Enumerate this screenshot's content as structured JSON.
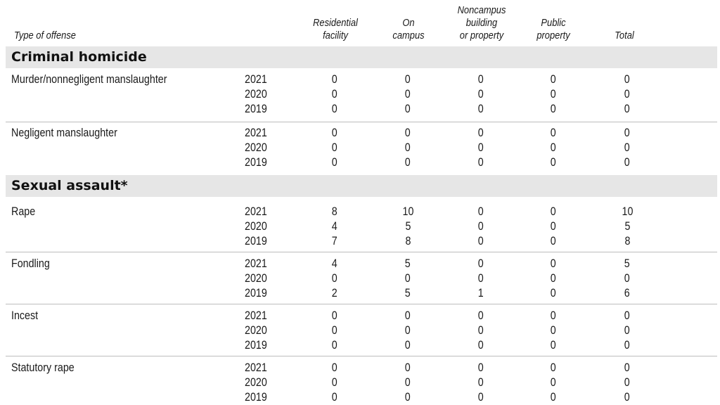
{
  "header": {
    "type_label": "Type of offense",
    "columns": [
      {
        "lines": [
          "Residential",
          "facility"
        ]
      },
      {
        "lines": [
          "On",
          "campus"
        ]
      },
      {
        "lines": [
          "Noncampus",
          "building",
          "or property"
        ]
      },
      {
        "lines": [
          "Public",
          "property"
        ]
      },
      {
        "lines": [
          "Total"
        ]
      }
    ]
  },
  "sections": [
    {
      "title": "Criminal homicide",
      "rows": [
        {
          "offense": "Murder/nonnegligent manslaughter",
          "years": [
            "2021",
            "2020",
            "2019"
          ],
          "residential": [
            "0",
            "0",
            "0"
          ],
          "on_campus": [
            "0",
            "0",
            "0"
          ],
          "noncampus": [
            "0",
            "0",
            "0"
          ],
          "public": [
            "0",
            "0",
            "0"
          ],
          "total": [
            "0",
            "0",
            "0"
          ]
        },
        {
          "offense": "Negligent manslaughter",
          "years": [
            "2021",
            "2020",
            "2019"
          ],
          "residential": [
            "0",
            "0",
            "0"
          ],
          "on_campus": [
            "0",
            "0",
            "0"
          ],
          "noncampus": [
            "0",
            "0",
            "0"
          ],
          "public": [
            "0",
            "0",
            "0"
          ],
          "total": [
            "0",
            "0",
            "0"
          ]
        }
      ]
    },
    {
      "title": "Sexual assault*",
      "rows": [
        {
          "offense": "Rape",
          "years": [
            "2021",
            "2020",
            "2019"
          ],
          "residential": [
            "8",
            "4",
            "7"
          ],
          "on_campus": [
            "10",
            "5",
            "8"
          ],
          "noncampus": [
            "0",
            "0",
            "0"
          ],
          "public": [
            "0",
            "0",
            "0"
          ],
          "total": [
            "10",
            "5",
            "8"
          ]
        },
        {
          "offense": "Fondling",
          "years": [
            "2021",
            "2020",
            "2019"
          ],
          "residential": [
            "4",
            "0",
            "2"
          ],
          "on_campus": [
            "5",
            "0",
            "5"
          ],
          "noncampus": [
            "0",
            "0",
            "1"
          ],
          "public": [
            "0",
            "0",
            "0"
          ],
          "total": [
            "5",
            "0",
            "6"
          ]
        },
        {
          "offense": "Incest",
          "years": [
            "2021",
            "2020",
            "2019"
          ],
          "residential": [
            "0",
            "0",
            "0"
          ],
          "on_campus": [
            "0",
            "0",
            "0"
          ],
          "noncampus": [
            "0",
            "0",
            "0"
          ],
          "public": [
            "0",
            "0",
            "0"
          ],
          "total": [
            "0",
            "0",
            "0"
          ]
        },
        {
          "offense": "Statutory rape",
          "years": [
            "2021",
            "2020",
            "2019"
          ],
          "residential": [
            "0",
            "0",
            "0"
          ],
          "on_campus": [
            "0",
            "0",
            "0"
          ],
          "noncampus": [
            "0",
            "0",
            "0"
          ],
          "public": [
            "0",
            "0",
            "0"
          ],
          "total": [
            "0",
            "0",
            "0"
          ]
        }
      ]
    }
  ]
}
